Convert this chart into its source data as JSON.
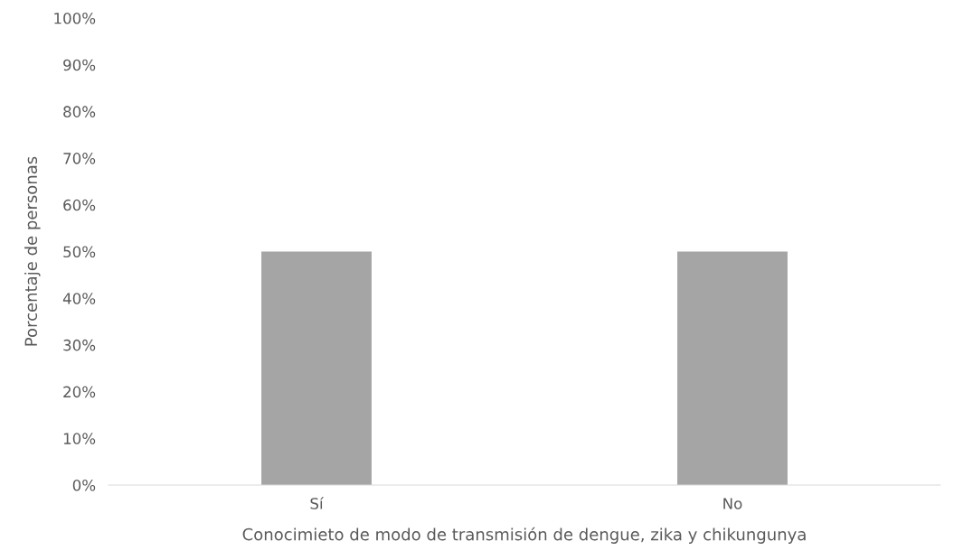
{
  "chart_data": {
    "type": "bar",
    "xlabel": "Conocimieto de modo de transmisión de dengue, zika y chikungunya",
    "ylabel": "Porcentaje de personas",
    "categories": [
      "Sí",
      "No"
    ],
    "values": [
      50,
      50
    ],
    "color": "#a5a5a5",
    "ylim": [
      0,
      100
    ],
    "yticks": [
      {
        "value": 0,
        "label": "0%"
      },
      {
        "value": 10,
        "label": "10%"
      },
      {
        "value": 20,
        "label": "20%"
      },
      {
        "value": 30,
        "label": "30%"
      },
      {
        "value": 40,
        "label": "40%"
      },
      {
        "value": 50,
        "label": "50%"
      },
      {
        "value": 60,
        "label": "60%"
      },
      {
        "value": 70,
        "label": "70%"
      },
      {
        "value": 80,
        "label": "80%"
      },
      {
        "value": 90,
        "label": "90%"
      },
      {
        "value": 100,
        "label": "100%"
      }
    ],
    "grid": false
  }
}
